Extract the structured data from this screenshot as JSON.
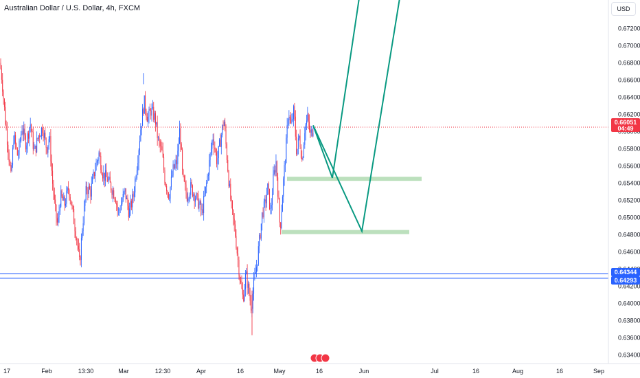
{
  "header": {
    "title": "Australian Dollar / U.S. Dollar, 4h, FXCM"
  },
  "currency_button": "USD",
  "price_scale": [
    "0.67200",
    "0.67000",
    "0.66800",
    "0.66600",
    "0.66400",
    "0.66200",
    "0.66000",
    "0.65800",
    "0.65600",
    "0.65400",
    "0.65200",
    "0.65000",
    "0.64800",
    "0.64600",
    "0.64400",
    "0.64200",
    "0.64000",
    "0.63800",
    "0.63600",
    "0.63400"
  ],
  "time_scale": [
    "17",
    "Feb",
    "13:30",
    "Mar",
    "12:30",
    "Apr",
    "16",
    "May",
    "16",
    "Jun",
    "Jul",
    "16",
    "Aug",
    "16",
    "Sep"
  ],
  "current_price": {
    "value": "0.66051",
    "countdown": "04:49"
  },
  "levels": {
    "upper": "0.64344",
    "lower": "0.64293"
  },
  "colors": {
    "up": "#2962ff",
    "down": "#f23645",
    "projection": "#089981",
    "zone": "#a5d6a7",
    "hline": "#2962ff",
    "background": "#ffffff"
  },
  "chart_data": {
    "type": "candlestick",
    "symbol": "AUDUSD",
    "interval": "4h",
    "ylim": [
      0.633,
      0.6745
    ],
    "close_path": [
      [
        0,
        0.668
      ],
      [
        3,
        0.666
      ],
      [
        8,
        0.661
      ],
      [
        12,
        0.658
      ],
      [
        16,
        0.6545
      ],
      [
        20,
        0.6595
      ],
      [
        26,
        0.657
      ],
      [
        32,
        0.6605
      ],
      [
        38,
        0.6585
      ],
      [
        44,
        0.661
      ],
      [
        50,
        0.6575
      ],
      [
        56,
        0.6595
      ],
      [
        62,
        0.6605
      ],
      [
        68,
        0.658
      ],
      [
        72,
        0.6595
      ],
      [
        76,
        0.6545
      ],
      [
        80,
        0.651
      ],
      [
        84,
        0.649
      ],
      [
        88,
        0.6525
      ],
      [
        94,
        0.6515
      ],
      [
        100,
        0.6535
      ],
      [
        106,
        0.6505
      ],
      [
        112,
        0.6475
      ],
      [
        116,
        0.6445
      ],
      [
        120,
        0.649
      ],
      [
        126,
        0.6535
      ],
      [
        132,
        0.653
      ],
      [
        138,
        0.6555
      ],
      [
        144,
        0.6575
      ],
      [
        150,
        0.655
      ],
      [
        156,
        0.6545
      ],
      [
        162,
        0.6535
      ],
      [
        168,
        0.6525
      ],
      [
        172,
        0.6505
      ],
      [
        176,
        0.6515
      ],
      [
        182,
        0.653
      ],
      [
        188,
        0.6505
      ],
      [
        194,
        0.6525
      ],
      [
        200,
        0.6565
      ],
      [
        205,
        0.6605
      ],
      [
        210,
        0.6635
      ],
      [
        215,
        0.6615
      ],
      [
        220,
        0.6625
      ],
      [
        226,
        0.6615
      ],
      [
        230,
        0.659
      ],
      [
        236,
        0.6575
      ],
      [
        240,
        0.6545
      ],
      [
        246,
        0.6525
      ],
      [
        252,
        0.6555
      ],
      [
        258,
        0.6565
      ],
      [
        262,
        0.6605
      ],
      [
        266,
        0.6545
      ],
      [
        272,
        0.6525
      ],
      [
        278,
        0.6535
      ],
      [
        284,
        0.6525
      ],
      [
        290,
        0.6515
      ],
      [
        294,
        0.6505
      ],
      [
        300,
        0.6535
      ],
      [
        305,
        0.6565
      ],
      [
        310,
        0.6595
      ],
      [
        316,
        0.6565
      ],
      [
        320,
        0.6585
      ],
      [
        326,
        0.6615
      ],
      [
        330,
        0.6575
      ],
      [
        334,
        0.6535
      ],
      [
        338,
        0.6505
      ],
      [
        342,
        0.6485
      ],
      [
        346,
        0.6455
      ],
      [
        350,
        0.6425
      ],
      [
        354,
        0.6405
      ],
      [
        358,
        0.6435
      ],
      [
        362,
        0.6415
      ],
      [
        366,
        0.6395
      ],
      [
        370,
        0.6425
      ],
      [
        374,
        0.6445
      ],
      [
        378,
        0.6475
      ],
      [
        382,
        0.6505
      ],
      [
        386,
        0.6515
      ],
      [
        390,
        0.6535
      ],
      [
        394,
        0.6505
      ],
      [
        398,
        0.6545
      ],
      [
        402,
        0.6565
      ],
      [
        406,
        0.6515
      ],
      [
        408,
        0.6485
      ],
      [
        412,
        0.6535
      ],
      [
        416,
        0.6575
      ],
      [
        420,
        0.6625
      ],
      [
        424,
        0.6605
      ],
      [
        428,
        0.6625
      ],
      [
        432,
        0.6575
      ],
      [
        436,
        0.6595
      ],
      [
        440,
        0.6565
      ],
      [
        444,
        0.6605
      ],
      [
        448,
        0.6615
      ],
      [
        452,
        0.6595
      ],
      [
        456,
        0.66051
      ]
    ],
    "current_price": 0.66051,
    "support_zones": [
      {
        "price": 0.6545,
        "x_start": 418,
        "x_end": 614
      },
      {
        "price": 0.6483,
        "x_start": 410,
        "x_end": 596
      }
    ],
    "horizontal_lines": [
      0.64344,
      0.64293
    ],
    "projection": [
      [
        456,
        0.66071
      ],
      [
        484,
        0.6546
      ],
      [
        456,
        0.66071
      ],
      [
        527,
        0.6484
      ],
      [
        582,
        0.6755
      ]
    ],
    "projection_2": [
      [
        456,
        0.66071
      ],
      [
        484,
        0.6546
      ],
      [
        523,
        0.6755
      ]
    ]
  }
}
